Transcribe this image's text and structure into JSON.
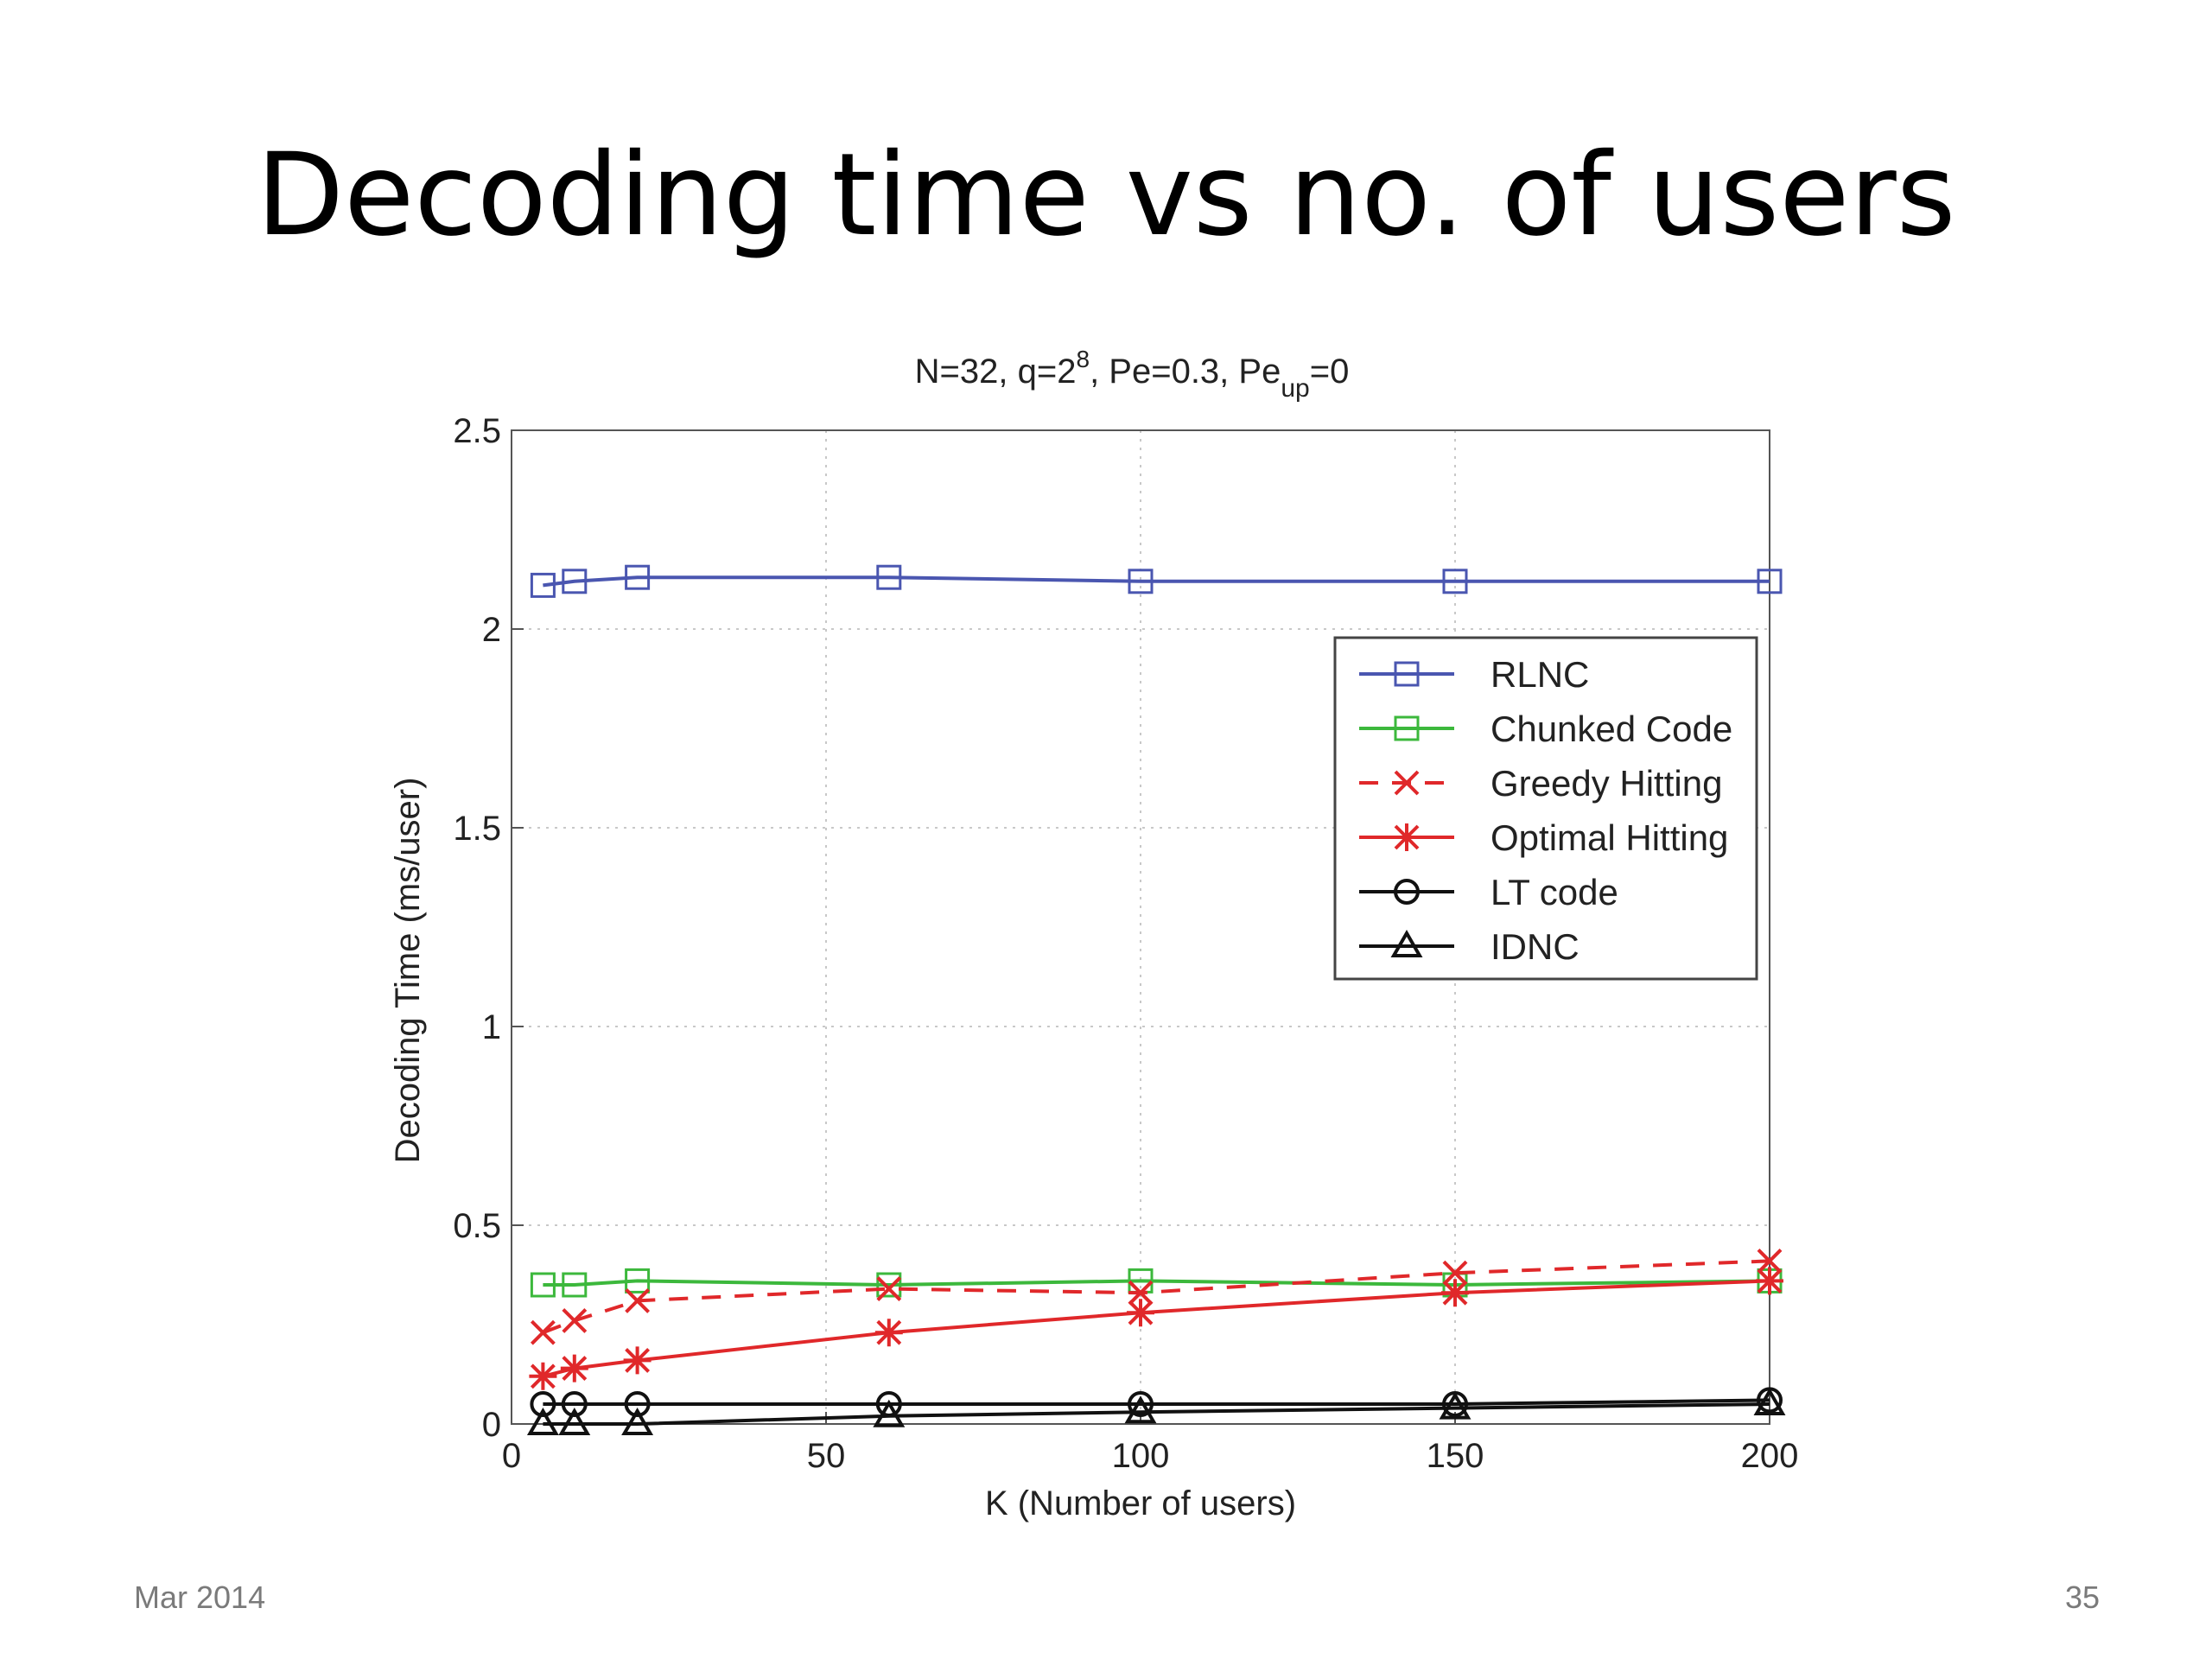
{
  "slide": {
    "title": "Decoding time vs no. of users",
    "footer_date": "Mar 2014",
    "page_number": "35"
  },
  "chart_data": {
    "type": "line",
    "title_parts": {
      "main": "N=32, q=2",
      "q_exp": "8",
      "pe": ", Pe=0.3, Pe",
      "up_sub": "up",
      "tail": "=0"
    },
    "xlabel": "K (Number of users)",
    "ylabel": "Decoding Time (ms/user)",
    "xlim": [
      0,
      200
    ],
    "ylim": [
      0,
      2.5
    ],
    "xticks": [
      0,
      50,
      100,
      150,
      200
    ],
    "yticks": [
      0,
      0.5,
      1,
      1.5,
      2,
      2.5
    ],
    "ytick_labels": [
      "0",
      "0.5",
      "1",
      "1.5",
      "2",
      "2.5"
    ],
    "grid": true,
    "legend_position": "upper-right",
    "x": [
      5,
      10,
      20,
      60,
      100,
      150,
      200
    ],
    "series": [
      {
        "name": "RLNC",
        "color": "#4a56b0",
        "marker": "square",
        "dash": false,
        "values": [
          2.11,
          2.12,
          2.13,
          2.13,
          2.12,
          2.12,
          2.12
        ]
      },
      {
        "name": "Chunked Code",
        "color": "#3cb83c",
        "marker": "square",
        "dash": false,
        "values": [
          0.35,
          0.35,
          0.36,
          0.35,
          0.36,
          0.35,
          0.36
        ]
      },
      {
        "name": "Greedy Hitting",
        "color": "#e0282a",
        "marker": "x",
        "dash": true,
        "values": [
          0.23,
          0.26,
          0.31,
          0.34,
          0.33,
          0.38,
          0.41
        ]
      },
      {
        "name": "Optimal Hitting",
        "color": "#e0282a",
        "marker": "star",
        "dash": false,
        "values": [
          0.12,
          0.14,
          0.16,
          0.23,
          0.28,
          0.33,
          0.36
        ]
      },
      {
        "name": "LT code",
        "color": "#111111",
        "marker": "circle",
        "dash": false,
        "values": [
          0.05,
          0.05,
          0.05,
          0.05,
          0.05,
          0.05,
          0.06
        ]
      },
      {
        "name": "IDNC",
        "color": "#111111",
        "marker": "triangle",
        "dash": false,
        "values": [
          0.0,
          0.0,
          0.0,
          0.02,
          0.03,
          0.04,
          0.05
        ]
      }
    ]
  }
}
